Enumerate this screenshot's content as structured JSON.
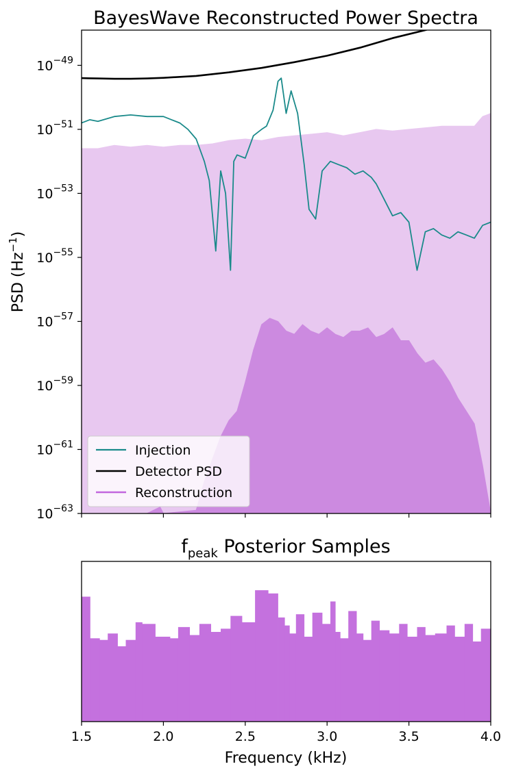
{
  "chart_data": [
    {
      "type": "area",
      "title": "BayesWave Reconstructed Power Spectra",
      "xlabel": "",
      "ylabel": "PSD (Hz",
      "ylabel_sup": "−1",
      "ylabel_close": ")",
      "yscale": "log",
      "ylim_exp": [
        -63,
        -47.9
      ],
      "xlim": [
        1.5,
        4.0
      ],
      "y_ticks": [
        {
          "base": "10",
          "exp": "−63",
          "value_exp": -63
        },
        {
          "base": "10",
          "exp": "−61",
          "value_exp": -61
        },
        {
          "base": "10",
          "exp": "−59",
          "value_exp": -59
        },
        {
          "base": "10",
          "exp": "−57",
          "value_exp": -57
        },
        {
          "base": "10",
          "exp": "−55",
          "value_exp": -55
        },
        {
          "base": "10",
          "exp": "−53",
          "value_exp": -53
        },
        {
          "base": "10",
          "exp": "−51",
          "value_exp": -51
        },
        {
          "base": "10",
          "exp": "−49",
          "value_exp": -49
        }
      ],
      "x_ticks_unlabeled": [
        1.5,
        2.0,
        2.5,
        3.0,
        3.5,
        4.0
      ],
      "legend_position": "lower-left",
      "legend": [
        {
          "label": "Injection",
          "color": "#1a8a8a"
        },
        {
          "label": "Detector PSD",
          "color": "#000000"
        },
        {
          "label": "Reconstruction",
          "color": "#c267dd"
        }
      ],
      "series": [
        {
          "name": "Detector PSD",
          "style": "line",
          "color": "#000000",
          "x": [
            1.5,
            1.6,
            1.7,
            1.8,
            1.9,
            2.0,
            2.2,
            2.4,
            2.6,
            2.8,
            3.0,
            3.2,
            3.4,
            3.6,
            3.8,
            4.0
          ],
          "y_exp": [
            -49.4,
            -49.41,
            -49.42,
            -49.42,
            -49.41,
            -49.39,
            -49.33,
            -49.22,
            -49.08,
            -48.9,
            -48.7,
            -48.45,
            -48.15,
            -47.9,
            -47.6,
            -47.3
          ]
        },
        {
          "name": "Reconstruction upper band",
          "style": "band",
          "color": "#e8c8f0",
          "x": [
            1.5,
            1.6,
            1.7,
            1.8,
            1.9,
            2.0,
            2.1,
            2.2,
            2.3,
            2.4,
            2.5,
            2.6,
            2.7,
            2.8,
            2.9,
            3.0,
            3.1,
            3.2,
            3.3,
            3.4,
            3.5,
            3.6,
            3.7,
            3.8,
            3.9,
            3.95,
            4.0
          ],
          "y_exp": [
            -51.6,
            -51.6,
            -51.5,
            -51.55,
            -51.5,
            -51.55,
            -51.5,
            -51.5,
            -51.45,
            -51.35,
            -51.3,
            -51.35,
            -51.25,
            -51.2,
            -51.15,
            -51.1,
            -51.2,
            -51.1,
            -51.0,
            -51.05,
            -51.0,
            -50.95,
            -50.9,
            -50.9,
            -50.9,
            -50.6,
            -50.5
          ]
        },
        {
          "name": "Reconstruction",
          "style": "band",
          "color": "#cc8ae0",
          "x": [
            1.5,
            1.9,
            1.98,
            2.0,
            2.2,
            2.25,
            2.3,
            2.35,
            2.4,
            2.45,
            2.5,
            2.55,
            2.6,
            2.65,
            2.7,
            2.75,
            2.8,
            2.85,
            2.9,
            2.95,
            3.0,
            3.05,
            3.1,
            3.15,
            3.2,
            3.25,
            3.3,
            3.35,
            3.4,
            3.45,
            3.5,
            3.55,
            3.6,
            3.65,
            3.7,
            3.75,
            3.8,
            3.85,
            3.9,
            3.95,
            4.0
          ],
          "y_exp": [
            -63,
            -63,
            -62.8,
            -63,
            -62.9,
            -62.0,
            -61.3,
            -60.6,
            -60.1,
            -59.8,
            -58.9,
            -57.9,
            -57.1,
            -56.9,
            -57.0,
            -57.3,
            -57.4,
            -57.1,
            -57.3,
            -57.4,
            -57.2,
            -57.4,
            -57.5,
            -57.3,
            -57.3,
            -57.2,
            -57.5,
            -57.4,
            -57.2,
            -57.6,
            -57.6,
            -58.0,
            -58.3,
            -58.2,
            -58.5,
            -58.9,
            -59.4,
            -59.8,
            -60.2,
            -61.5,
            -63
          ]
        },
        {
          "name": "Injection",
          "style": "line",
          "color": "#1a8a8a",
          "x": [
            1.5,
            1.55,
            1.6,
            1.7,
            1.8,
            1.9,
            2.0,
            2.05,
            2.1,
            2.15,
            2.2,
            2.25,
            2.28,
            2.32,
            2.35,
            2.38,
            2.41,
            2.43,
            2.45,
            2.5,
            2.55,
            2.6,
            2.63,
            2.67,
            2.7,
            2.72,
            2.75,
            2.78,
            2.82,
            2.86,
            2.89,
            2.93,
            2.97,
            3.02,
            3.07,
            3.12,
            3.17,
            3.22,
            3.27,
            3.3,
            3.35,
            3.4,
            3.45,
            3.5,
            3.55,
            3.6,
            3.65,
            3.7,
            3.75,
            3.8,
            3.85,
            3.9,
            3.95,
            4.0
          ],
          "y_exp": [
            -50.8,
            -50.7,
            -50.75,
            -50.6,
            -50.55,
            -50.6,
            -50.6,
            -50.7,
            -50.8,
            -51.0,
            -51.3,
            -52.0,
            -52.6,
            -54.8,
            -52.3,
            -53.0,
            -55.4,
            -52.0,
            -51.8,
            -51.9,
            -51.2,
            -51.0,
            -50.9,
            -50.4,
            -49.5,
            -49.4,
            -50.5,
            -49.8,
            -50.5,
            -52.1,
            -53.5,
            -53.8,
            -52.3,
            -52.0,
            -52.1,
            -52.2,
            -52.4,
            -52.3,
            -52.5,
            -52.7,
            -53.2,
            -53.7,
            -53.6,
            -53.9,
            -55.4,
            -54.2,
            -54.1,
            -54.3,
            -54.4,
            -54.2,
            -54.3,
            -54.4,
            -54.0,
            -53.9
          ]
        }
      ]
    },
    {
      "type": "bar",
      "title": "f",
      "title_sub": "peak",
      "title_rest": " Posterior Samples",
      "xlabel": "Frequency (kHz)",
      "ylabel": "",
      "xlim": [
        1.5,
        4.0
      ],
      "x_ticks": [
        "1.5",
        "2.0",
        "2.5",
        "3.0",
        "3.5",
        "4.0"
      ],
      "x_tick_values": [
        1.5,
        2.0,
        2.5,
        3.0,
        3.5,
        4.0
      ],
      "bar_color": "#c471de",
      "bin_edges": [
        1.5,
        1.552,
        1.61,
        1.66,
        1.72,
        1.77,
        1.83,
        1.87,
        1.95,
        2.04,
        2.09,
        2.16,
        2.22,
        2.29,
        2.35,
        2.41,
        2.48,
        2.56,
        2.64,
        2.7,
        2.74,
        2.77,
        2.81,
        2.86,
        2.91,
        2.97,
        3.02,
        3.05,
        3.08,
        3.13,
        3.18,
        3.22,
        3.27,
        3.32,
        3.38,
        3.44,
        3.49,
        3.55,
        3.6,
        3.66,
        3.73,
        3.78,
        3.84,
        3.89,
        3.94,
        4.0
      ],
      "values": [
        0.78,
        0.52,
        0.51,
        0.55,
        0.47,
        0.51,
        0.62,
        0.61,
        0.53,
        0.52,
        0.59,
        0.54,
        0.61,
        0.56,
        0.58,
        0.66,
        0.62,
        0.82,
        0.8,
        0.65,
        0.6,
        0.55,
        0.67,
        0.53,
        0.68,
        0.61,
        0.75,
        0.56,
        0.52,
        0.69,
        0.55,
        0.51,
        0.63,
        0.57,
        0.55,
        0.61,
        0.53,
        0.59,
        0.54,
        0.55,
        0.6,
        0.53,
        0.61,
        0.5,
        0.58
      ],
      "ylim": [
        0,
        1.0
      ],
      "y_ticks_shown": false
    }
  ]
}
